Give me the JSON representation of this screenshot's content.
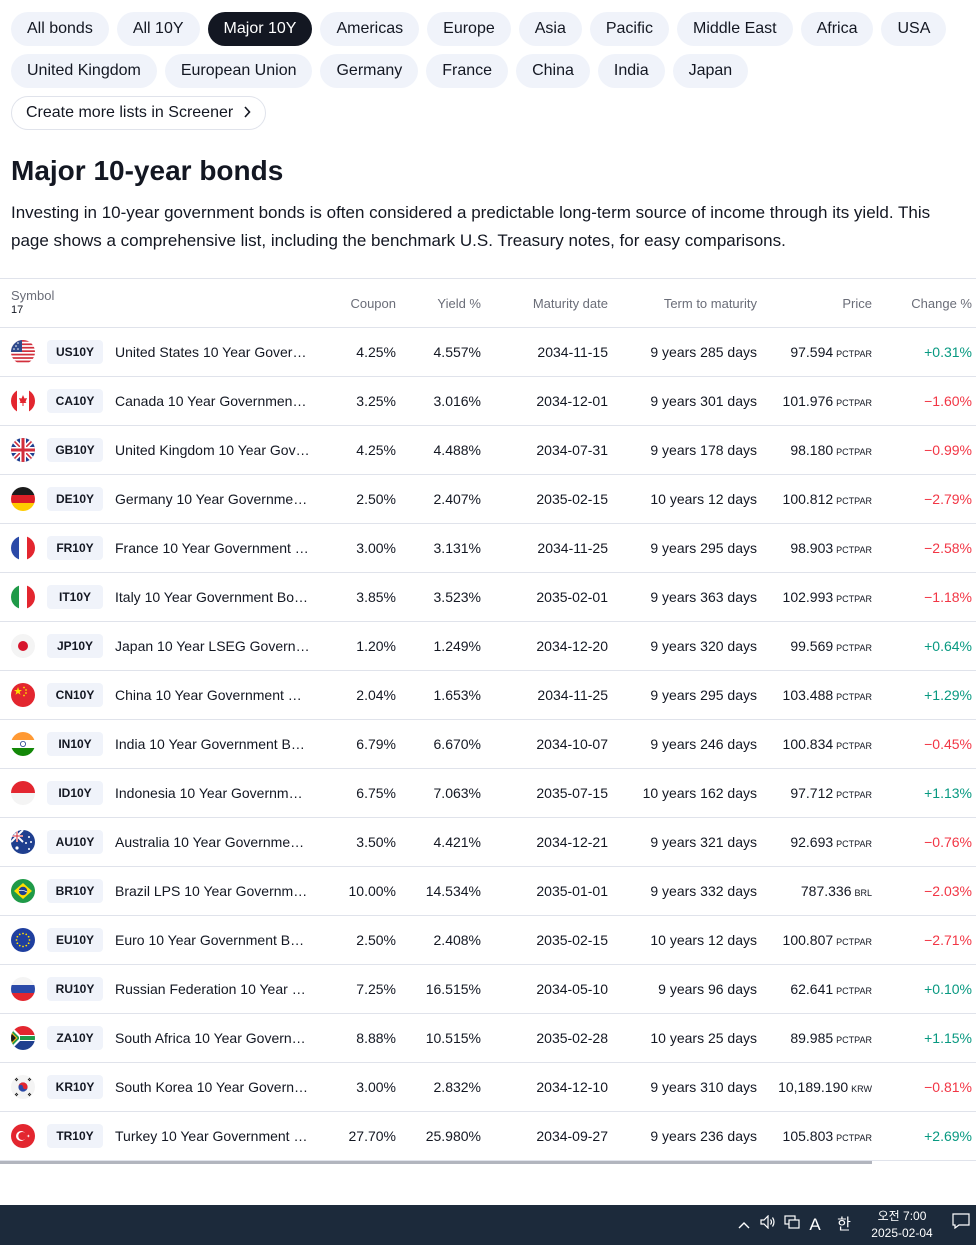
{
  "filters": {
    "row1": [
      "All bonds",
      "All 10Y",
      "Major 10Y",
      "Americas",
      "Europe",
      "Asia",
      "Pacific",
      "Middle East",
      "Africa",
      "USA"
    ],
    "row2": [
      "United Kingdom",
      "European Union",
      "Germany",
      "France",
      "China",
      "India",
      "Japan"
    ],
    "active": "Major 10Y",
    "screener_link": "Create more lists in Screener"
  },
  "page": {
    "title": "Major 10-year bonds",
    "description": "Investing in 10-year government bonds is often considered a predictable long-term source of income through its yield. This page shows a comprehensive list, including the benchmark U.S. Treasury notes, for easy comparisons."
  },
  "table": {
    "headers": {
      "symbol": "Symbol",
      "count": "17",
      "coupon": "Coupon",
      "yield": "Yield %",
      "maturity": "Maturity date",
      "term": "Term to maturity",
      "price": "Price",
      "change": "Change %"
    },
    "rows": [
      {
        "flag": "us",
        "ticker": "US10Y",
        "name": "United States 10 Year Gover…",
        "coupon": "4.25%",
        "yield": "4.557%",
        "maturity": "2034-11-15",
        "term": "9 years 285 days",
        "price": "97.594",
        "unit": "PCTPAR",
        "change": "+0.31%",
        "dir": "pos"
      },
      {
        "flag": "ca",
        "ticker": "CA10Y",
        "name": "Canada 10 Year Government …",
        "coupon": "3.25%",
        "yield": "3.016%",
        "maturity": "2034-12-01",
        "term": "9 years 301 days",
        "price": "101.976",
        "unit": "PCTPAR",
        "change": "−1.60%",
        "dir": "neg"
      },
      {
        "flag": "gb",
        "ticker": "GB10Y",
        "name": "United Kingdom 10 Year Gov…",
        "coupon": "4.25%",
        "yield": "4.488%",
        "maturity": "2034-07-31",
        "term": "9 years 178 days",
        "price": "98.180",
        "unit": "PCTPAR",
        "change": "−0.99%",
        "dir": "neg"
      },
      {
        "flag": "de",
        "ticker": "DE10Y",
        "name": "Germany 10 Year Governmen…",
        "coupon": "2.50%",
        "yield": "2.407%",
        "maturity": "2035-02-15",
        "term": "10 years 12 days",
        "price": "100.812",
        "unit": "PCTPAR",
        "change": "−2.79%",
        "dir": "neg"
      },
      {
        "flag": "fr",
        "ticker": "FR10Y",
        "name": "France 10 Year Government …",
        "coupon": "3.00%",
        "yield": "3.131%",
        "maturity": "2034-11-25",
        "term": "9 years 295 days",
        "price": "98.903",
        "unit": "PCTPAR",
        "change": "−2.58%",
        "dir": "neg"
      },
      {
        "flag": "it",
        "ticker": "IT10Y",
        "name": "Italy 10 Year Government Bo…",
        "coupon": "3.85%",
        "yield": "3.523%",
        "maturity": "2035-02-01",
        "term": "9 years 363 days",
        "price": "102.993",
        "unit": "PCTPAR",
        "change": "−1.18%",
        "dir": "neg"
      },
      {
        "flag": "jp",
        "ticker": "JP10Y",
        "name": "Japan 10 Year LSEG Govern…",
        "coupon": "1.20%",
        "yield": "1.249%",
        "maturity": "2034-12-20",
        "term": "9 years 320 days",
        "price": "99.569",
        "unit": "PCTPAR",
        "change": "+0.64%",
        "dir": "pos"
      },
      {
        "flag": "cn",
        "ticker": "CN10Y",
        "name": "China 10 Year Government B…",
        "coupon": "2.04%",
        "yield": "1.653%",
        "maturity": "2034-11-25",
        "term": "9 years 295 days",
        "price": "103.488",
        "unit": "PCTPAR",
        "change": "+1.29%",
        "dir": "pos"
      },
      {
        "flag": "in",
        "ticker": "IN10Y",
        "name": "India 10 Year Government Bo…",
        "coupon": "6.79%",
        "yield": "6.670%",
        "maturity": "2034-10-07",
        "term": "9 years 246 days",
        "price": "100.834",
        "unit": "PCTPAR",
        "change": "−0.45%",
        "dir": "neg"
      },
      {
        "flag": "id",
        "ticker": "ID10Y",
        "name": "Indonesia 10 Year Governme…",
        "coupon": "6.75%",
        "yield": "7.063%",
        "maturity": "2035-07-15",
        "term": "10 years 162 days",
        "price": "97.712",
        "unit": "PCTPAR",
        "change": "+1.13%",
        "dir": "pos"
      },
      {
        "flag": "au",
        "ticker": "AU10Y",
        "name": "Australia 10 Year Governmen…",
        "coupon": "3.50%",
        "yield": "4.421%",
        "maturity": "2034-12-21",
        "term": "9 years 321 days",
        "price": "92.693",
        "unit": "PCTPAR",
        "change": "−0.76%",
        "dir": "neg"
      },
      {
        "flag": "br",
        "ticker": "BR10Y",
        "name": "Brazil LPS 10 Year Governme…",
        "coupon": "10.00%",
        "yield": "14.534%",
        "maturity": "2035-01-01",
        "term": "9 years 332 days",
        "price": "787.336",
        "unit": "BRL",
        "change": "−2.03%",
        "dir": "neg"
      },
      {
        "flag": "eu",
        "ticker": "EU10Y",
        "name": "Euro 10 Year Government Bo…",
        "coupon": "2.50%",
        "yield": "2.408%",
        "maturity": "2035-02-15",
        "term": "10 years 12 days",
        "price": "100.807",
        "unit": "PCTPAR",
        "change": "−2.71%",
        "dir": "neg"
      },
      {
        "flag": "ru",
        "ticker": "RU10Y",
        "name": "Russian Federation 10 Year G…",
        "coupon": "7.25%",
        "yield": "16.515%",
        "maturity": "2034-05-10",
        "term": "9 years 96 days",
        "price": "62.641",
        "unit": "PCTPAR",
        "change": "+0.10%",
        "dir": "pos"
      },
      {
        "flag": "za",
        "ticker": "ZA10Y",
        "name": "South Africa 10 Year Govern…",
        "coupon": "8.88%",
        "yield": "10.515%",
        "maturity": "2035-02-28",
        "term": "10 years 25 days",
        "price": "89.985",
        "unit": "PCTPAR",
        "change": "+1.15%",
        "dir": "pos"
      },
      {
        "flag": "kr",
        "ticker": "KR10Y",
        "name": "South Korea 10 Year Govern…",
        "coupon": "3.00%",
        "yield": "2.832%",
        "maturity": "2034-12-10",
        "term": "9 years 310 days",
        "price": "10,189.190",
        "unit": "KRW",
        "change": "−0.81%",
        "dir": "neg"
      },
      {
        "flag": "tr",
        "ticker": "TR10Y",
        "name": "Turkey 10 Year Government …",
        "coupon": "27.70%",
        "yield": "25.980%",
        "maturity": "2034-09-27",
        "term": "9 years 236 days",
        "price": "105.803",
        "unit": "PCTPAR",
        "change": "+2.69%",
        "dir": "pos"
      }
    ]
  },
  "colors": {
    "positive": "#089981",
    "negative": "#f23645",
    "chip_active": "#131722",
    "chip_bg": "#f0f3fa"
  },
  "taskbar": {
    "icons": [
      "chevron-up-icon",
      "speaker-icon",
      "network-icon",
      "ime-a-icon",
      "ime-hangul-icon",
      "notification-icon"
    ],
    "ime_letter": "A",
    "ime_hangul": "한",
    "time": "오전 7:00",
    "date": "2025-02-04"
  }
}
